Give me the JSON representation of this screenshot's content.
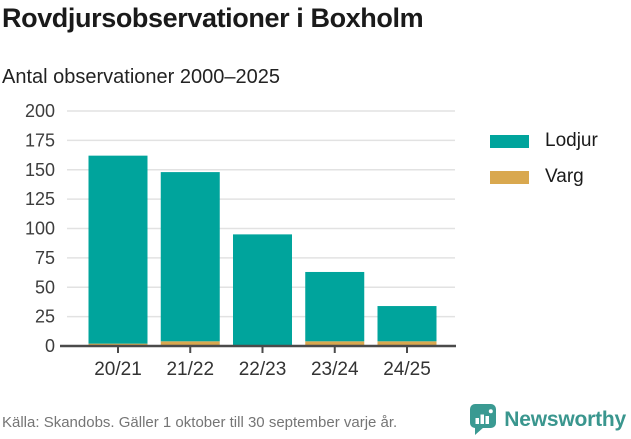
{
  "header": {
    "title": "Rovdjursobservationer i Boxholm",
    "subtitle": "Antal observationer 2000–2025"
  },
  "chart_data": {
    "type": "bar",
    "stacked": true,
    "title": "Rovdjursobservationer i Boxholm",
    "subtitle": "Antal observationer 2000–2025",
    "categories": [
      "20/21",
      "21/22",
      "22/23",
      "23/24",
      "24/25"
    ],
    "series": [
      {
        "name": "Lodjur",
        "color": "#00a49c",
        "values": [
          160,
          144,
          95,
          59,
          30
        ]
      },
      {
        "name": "Varg",
        "color": "#d9a84f",
        "values": [
          2,
          4,
          0,
          4,
          4
        ]
      }
    ],
    "totals": [
      162,
      148,
      95,
      63,
      34
    ],
    "xlabel": "",
    "ylabel": "",
    "ylim": [
      0,
      200
    ],
    "yticks": [
      0,
      25,
      50,
      75,
      100,
      125,
      150,
      175,
      200
    ],
    "grid": true,
    "legend_position": "right",
    "colors": {
      "grid": "#e2e2e2",
      "axis": "#4a4a4a",
      "tick_label": "#3d3d3d"
    }
  },
  "footer": {
    "source": "Källa: Skandobs. Gäller 1 oktober till 30 september varje år.",
    "brand": "Newsworthy",
    "logo_icon": "newsworthy-speech-bubble-bar-chart-icon",
    "brand_color": "#3a968e"
  }
}
